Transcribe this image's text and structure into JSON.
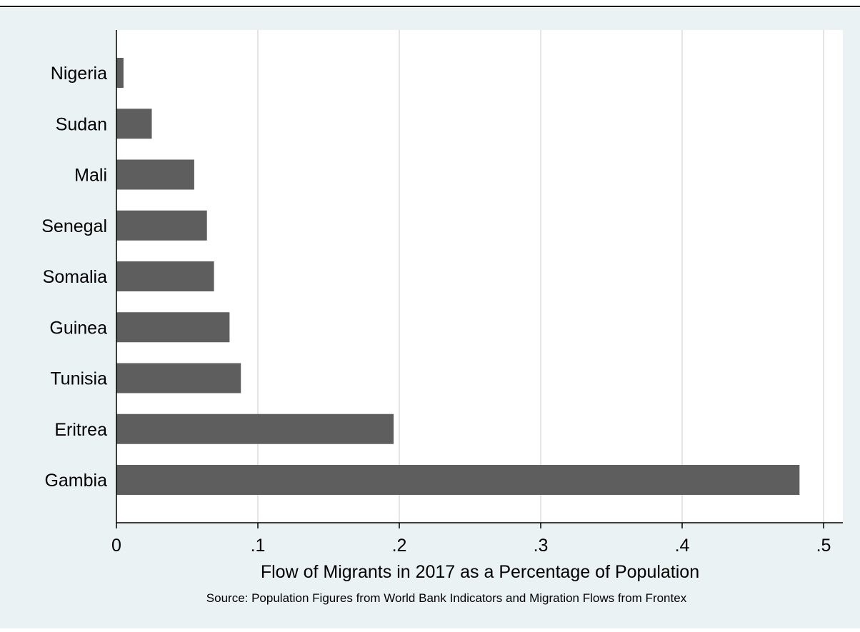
{
  "chart_data": {
    "type": "bar",
    "orientation": "horizontal",
    "categories": [
      "Nigeria",
      "Sudan",
      "Mali",
      "Senegal",
      "Somalia",
      "Guinea",
      "Tunisia",
      "Eritrea",
      "Gambia"
    ],
    "values": [
      0.005,
      0.025,
      0.055,
      0.064,
      0.069,
      0.08,
      0.088,
      0.196,
      0.483
    ],
    "xlim": [
      0,
      0.5
    ],
    "xticks": [
      "0",
      ".1",
      ".2",
      ".3",
      ".4",
      ".5"
    ],
    "xlabel": "Flow of Migrants in 2017 as a Percentage of Population",
    "note": "Source: Population Figures from World Bank Indicators and Migration Flows from Frontex",
    "grid": "vertical",
    "colors": {
      "bar": "#5e5e5e",
      "plot_background": "#ffffff",
      "outer_background": "#eaf2f3",
      "grid": "#e5e5e5",
      "axis": "#000000"
    }
  }
}
